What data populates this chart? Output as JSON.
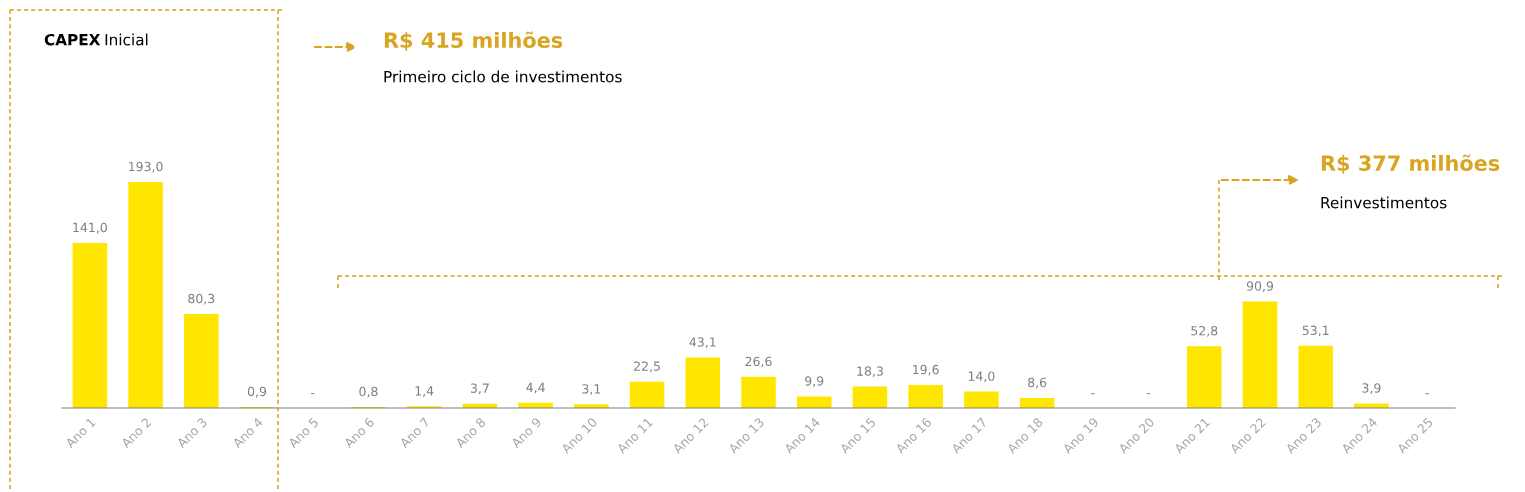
{
  "chart_data": {
    "type": "bar",
    "categories": [
      "Ano 1",
      "Ano 2",
      "Ano 3",
      "Ano 4",
      "Ano 5",
      "Ano 6",
      "Ano 7",
      "Ano 8",
      "Ano 9",
      "Ano 10",
      "Ano 11",
      "Ano 12",
      "Ano 13",
      "Ano 14",
      "Ano 15",
      "Ano 16",
      "Ano 17",
      "Ano 18",
      "Ano 19",
      "Ano 20",
      "Ano 21",
      "Ano 22",
      "Ano 23",
      "Ano 24",
      "Ano 25"
    ],
    "values": [
      141.0,
      193.0,
      80.3,
      0.9,
      0,
      0.8,
      1.4,
      3.7,
      4.4,
      3.1,
      22.5,
      43.1,
      26.6,
      9.9,
      18.3,
      19.6,
      14.0,
      8.6,
      0,
      0,
      52.8,
      90.9,
      53.1,
      3.9,
      0
    ],
    "value_labels": [
      "141,0",
      "193,0",
      "80,3",
      "0,9",
      "-",
      "0,8",
      "1,4",
      "3,7",
      "4,4",
      "3,1",
      "22,5",
      "43,1",
      "26,6",
      "9,9",
      "18,3",
      "19,6",
      "14,0",
      "8,6",
      "-",
      "-",
      "52,8",
      "90,9",
      "53,1",
      "3,9",
      "-"
    ],
    "color": "#ffe600",
    "annotations": [
      "CAPEX Inicial",
      "R$ 415 milhões",
      "Primeiro ciclo de investimentos",
      "R$ 377 milhões",
      "Reinvestimentos"
    ]
  }
}
